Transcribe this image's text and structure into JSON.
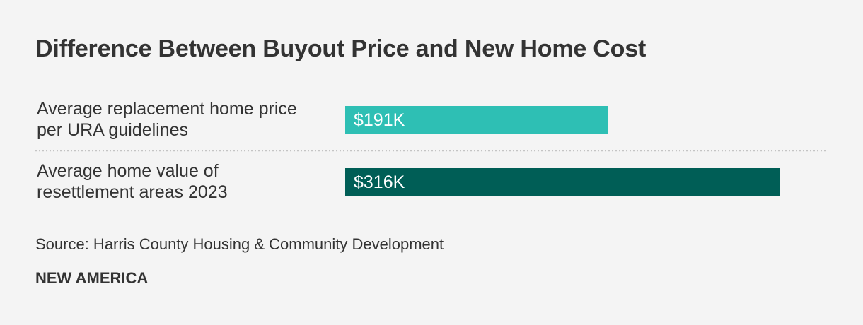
{
  "title": "Difference Between Buyout Price and New Home Cost",
  "source": "Source: Harris County Housing & Community Development",
  "brand": "NEW AMERICA",
  "chart_data": {
    "type": "bar",
    "orientation": "horizontal",
    "title": "Difference Between Buyout Price and New Home Cost",
    "categories": [
      [
        "Average replacement home price",
        "per URA guidelines"
      ],
      [
        "Average home value of",
        "resettlement areas 2023"
      ]
    ],
    "values": [
      191,
      316
    ],
    "value_labels": [
      "$191K",
      "$316K"
    ],
    "unit": "thousands of dollars",
    "colors": [
      "#2ebfb4",
      "#005e56"
    ],
    "xlim": [
      0,
      320
    ],
    "grid": false,
    "legend": "none"
  }
}
